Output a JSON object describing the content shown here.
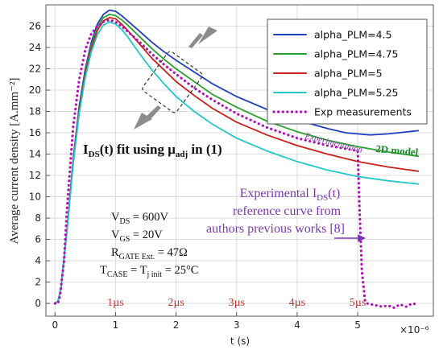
{
  "chart_data": {
    "type": "line",
    "title": "",
    "xlabel": "t (s)",
    "ylabel": "Average current density [A.mm⁻²]",
    "x_multiplier": "×10⁻⁶",
    "xlim": [
      -0.15,
      6.25
    ],
    "ylim": [
      -1.2,
      28.0
    ],
    "xticks": [
      0,
      1,
      2,
      3,
      4,
      5
    ],
    "yticks": [
      0,
      2,
      4,
      6,
      8,
      10,
      12,
      14,
      16,
      18,
      20,
      22,
      24,
      26
    ],
    "grid": true,
    "legend_position": "top-right",
    "series": [
      {
        "name": "alpha_PLM=4.5",
        "color": "#1f3fbf",
        "style": "solid",
        "x": [
          0,
          0.05,
          0.1,
          0.2,
          0.3,
          0.4,
          0.5,
          0.6,
          0.7,
          0.8,
          0.9,
          1.0,
          1.1,
          1.2,
          1.4,
          1.6,
          1.8,
          2.0,
          2.3,
          2.6,
          3.0,
          3.5,
          4.0,
          4.5,
          4.8,
          5.0,
          5.2,
          5.5,
          6.0
        ],
        "y": [
          0,
          0.2,
          1.5,
          7.0,
          13.5,
          18.5,
          22.0,
          24.5,
          26.2,
          27.1,
          27.5,
          27.4,
          27.0,
          26.5,
          25.5,
          24.5,
          23.6,
          22.8,
          21.7,
          20.6,
          19.4,
          18.2,
          17.2,
          16.4,
          16.0,
          15.9,
          15.8,
          15.9,
          16.2
        ]
      },
      {
        "name": "alpha_PLM=4.75",
        "color": "#2ca02c",
        "style": "solid",
        "x": [
          0,
          0.05,
          0.1,
          0.2,
          0.3,
          0.4,
          0.5,
          0.6,
          0.7,
          0.8,
          0.9,
          1.0,
          1.1,
          1.2,
          1.4,
          1.6,
          1.8,
          2.0,
          2.3,
          2.6,
          3.0,
          3.5,
          4.0,
          4.5,
          5.0,
          5.5,
          6.0
        ],
        "y": [
          0,
          0.2,
          1.5,
          7.0,
          13.3,
          18.2,
          21.7,
          24.2,
          25.9,
          26.8,
          27.1,
          27.0,
          26.6,
          26.1,
          25.0,
          23.9,
          22.9,
          22.0,
          20.8,
          19.6,
          18.4,
          17.1,
          16.1,
          15.3,
          14.7,
          14.2,
          13.8
        ]
      },
      {
        "name": "alpha_PLM=5",
        "color": "#c8201e",
        "style": "solid",
        "x": [
          0,
          0.05,
          0.1,
          0.2,
          0.3,
          0.4,
          0.5,
          0.6,
          0.7,
          0.8,
          0.9,
          1.0,
          1.1,
          1.2,
          1.4,
          1.6,
          1.8,
          2.0,
          2.3,
          2.6,
          3.0,
          3.5,
          4.0,
          4.5,
          5.0,
          5.5,
          6.0
        ],
        "y": [
          0,
          0.2,
          1.5,
          7.0,
          13.2,
          18.0,
          21.5,
          23.9,
          25.6,
          26.5,
          26.8,
          26.7,
          26.2,
          25.6,
          24.3,
          23.0,
          21.9,
          20.8,
          19.5,
          18.3,
          17.0,
          15.8,
          14.8,
          14.0,
          13.3,
          12.8,
          12.4
        ]
      },
      {
        "name": "alpha_PLM=5.25",
        "color": "#22c8c8",
        "style": "solid",
        "x": [
          0,
          0.05,
          0.1,
          0.2,
          0.3,
          0.4,
          0.5,
          0.6,
          0.7,
          0.8,
          0.9,
          1.0,
          1.1,
          1.2,
          1.4,
          1.6,
          1.8,
          2.0,
          2.3,
          2.6,
          3.0,
          3.5,
          4.0,
          4.5,
          5.0,
          5.5,
          6.0
        ],
        "y": [
          0,
          0.2,
          1.5,
          6.9,
          13.0,
          17.8,
          21.2,
          23.6,
          25.2,
          26.1,
          26.4,
          26.2,
          25.7,
          25.0,
          23.4,
          21.9,
          20.6,
          19.4,
          18.0,
          16.8,
          15.5,
          14.3,
          13.3,
          12.5,
          11.9,
          11.5,
          11.2
        ]
      },
      {
        "name": "Exp measurements",
        "color": "#b012b8",
        "style": "dotted",
        "x": [
          0.0,
          0.05,
          0.08,
          0.15,
          0.2,
          0.3,
          0.4,
          0.5,
          0.6,
          0.7,
          0.8,
          0.9,
          1.0,
          1.1,
          1.2,
          1.4,
          1.6,
          1.8,
          2.0,
          2.3,
          2.6,
          3.0,
          3.5,
          4.0,
          4.5,
          4.9,
          5.0,
          5.03,
          5.07,
          5.12,
          5.15,
          5.4,
          5.5,
          5.6,
          5.7,
          5.8,
          5.9,
          6.0
        ],
        "y": [
          0,
          0,
          0.6,
          4.0,
          9.0,
          16.5,
          21.0,
          23.8,
          25.3,
          26.0,
          26.4,
          26.6,
          26.4,
          26.0,
          25.5,
          24.5,
          23.4,
          22.4,
          21.5,
          20.2,
          19.1,
          17.8,
          16.5,
          15.5,
          14.8,
          14.4,
          14.3,
          9.0,
          3.0,
          0.3,
          0.0,
          -0.3,
          -0.2,
          -0.4,
          -0.1,
          -0.3,
          0.0,
          -0.1
        ]
      }
    ]
  },
  "annotations": {
    "ids_fit": {
      "pre": "I",
      "sub": "DS",
      "mid": "(t) fit using μ",
      "sub2": "adj",
      "post": " in (1)"
    },
    "experimentation": "Experimentation",
    "model_2d": "2D model",
    "experimental_ref": {
      "line1_pre": "Experimental I",
      "line1_sub": "DS",
      "line1_post": "(t)",
      "line2": "reference curve from",
      "line3": "authors previous works [8]"
    },
    "params": [
      {
        "pre": "V",
        "sub": "DS",
        "post": " = 600V"
      },
      {
        "pre": "V",
        "sub": "GS",
        "post": " = 20V"
      },
      {
        "pre": "R",
        "sub": "GATE Ext.",
        "post": " = 47Ω"
      },
      {
        "pre": "T",
        "sub": "CASE",
        "mid": " = T",
        "sub2": "j init",
        "post": " = 25°C"
      }
    ],
    "time_marks": [
      "1µs",
      "2µs",
      "3µs",
      "4µs",
      "5µs"
    ]
  },
  "colors": {
    "annotation_purple": "#7a36b0",
    "model_green": "#1a8a2a",
    "time_red": "#c0302b",
    "arrow_gray": "#8c8c8c"
  }
}
